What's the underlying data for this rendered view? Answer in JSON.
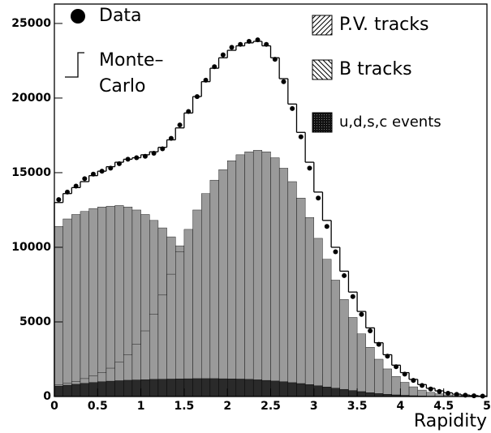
{
  "chart_data": {
    "type": "histogram",
    "x_label": "Rapidity",
    "bins": [
      0,
      0.1,
      0.2,
      0.3,
      0.4,
      0.5,
      0.6,
      0.7,
      0.8,
      0.9,
      1,
      1.1,
      1.2,
      1.3,
      1.4,
      1.5,
      1.6,
      1.7,
      1.8,
      1.9,
      2,
      2.1,
      2.2,
      2.3,
      2.4,
      2.5,
      2.6,
      2.7,
      2.8,
      2.9,
      3,
      3.1,
      3.2,
      3.3,
      3.4,
      3.5,
      3.6,
      3.7,
      3.8,
      3.9,
      4,
      4.1,
      4.2,
      4.3,
      4.4,
      4.5,
      4.6,
      4.7,
      4.8,
      4.9,
      5
    ],
    "xlim": [
      0,
      5
    ],
    "ylim": [
      0,
      26300
    ],
    "xticks": [
      0,
      0.5,
      1,
      1.5,
      2,
      2.5,
      3,
      3.5,
      4,
      4.5,
      5
    ],
    "yticks": [
      0,
      5000,
      10000,
      15000,
      20000,
      25000
    ],
    "series": [
      {
        "name": "P.V. tracks",
        "style": "fill",
        "pattern": "hatch-pv",
        "color": "#9a9a9a",
        "values": [
          11400,
          11900,
          12200,
          12400,
          12600,
          12700,
          12750,
          12800,
          12700,
          12500,
          12200,
          11800,
          11300,
          10700,
          10100,
          9500,
          8900,
          8300,
          7700,
          7100,
          6500,
          5900,
          5300,
          4800,
          4300,
          3800,
          3300,
          2800,
          2300,
          1900,
          1500,
          1200,
          950,
          750,
          570,
          430,
          320,
          230,
          160,
          110,
          75,
          50,
          35,
          22,
          15,
          10,
          6,
          4,
          2,
          1
        ]
      },
      {
        "name": "B tracks",
        "style": "fill",
        "pattern": "hatch-b",
        "color": "#9a9a9a",
        "values": [
          800,
          900,
          1000,
          1200,
          1400,
          1600,
          1900,
          2300,
          2800,
          3500,
          4400,
          5500,
          6800,
          8200,
          9700,
          11200,
          12500,
          13600,
          14500,
          15200,
          15800,
          16200,
          16400,
          16500,
          16400,
          16000,
          15300,
          14400,
          13300,
          12000,
          10600,
          9200,
          7800,
          6500,
          5300,
          4200,
          3300,
          2500,
          1850,
          1350,
          950,
          650,
          430,
          280,
          180,
          110,
          70,
          40,
          20,
          10
        ]
      },
      {
        "name": "u,d,s,c events",
        "style": "fill",
        "pattern": "dots-udsc",
        "color": "#2a2a2a",
        "values": [
          700,
          760,
          820,
          880,
          940,
          990,
          1030,
          1060,
          1090,
          1110,
          1130,
          1150,
          1160,
          1170,
          1180,
          1190,
          1200,
          1200,
          1200,
          1190,
          1180,
          1170,
          1150,
          1120,
          1080,
          1040,
          990,
          930,
          870,
          800,
          720,
          640,
          560,
          480,
          400,
          330,
          260,
          200,
          150,
          110,
          80,
          55,
          35,
          22,
          14,
          8,
          5,
          3,
          2,
          1
        ]
      },
      {
        "name": "Monte–Carlo",
        "style": "step",
        "color": "#000000",
        "values": [
          13000,
          13600,
          14000,
          14400,
          14800,
          15100,
          15400,
          15700,
          15900,
          16000,
          16200,
          16400,
          16700,
          17200,
          18000,
          19000,
          20100,
          21100,
          22000,
          22700,
          23200,
          23500,
          23700,
          23800,
          23500,
          22700,
          21300,
          19600,
          17700,
          15700,
          13700,
          11800,
          10000,
          8400,
          7000,
          5700,
          4600,
          3600,
          2800,
          2100,
          1600,
          1150,
          800,
          550,
          380,
          250,
          160,
          100,
          60,
          30
        ]
      },
      {
        "name": "Data",
        "style": "points",
        "color": "#000000",
        "values": [
          13200,
          13700,
          14100,
          14600,
          14900,
          15100,
          15300,
          15600,
          15900,
          16000,
          16100,
          16300,
          16600,
          17300,
          18200,
          19100,
          20100,
          21200,
          22100,
          22900,
          23400,
          23600,
          23800,
          23900,
          23600,
          22600,
          21100,
          19300,
          17400,
          15300,
          13300,
          11400,
          9700,
          8100,
          6700,
          5500,
          4400,
          3500,
          2700,
          2000,
          1500,
          1080,
          740,
          500,
          340,
          220,
          140,
          90,
          50,
          25
        ]
      }
    ]
  }
}
